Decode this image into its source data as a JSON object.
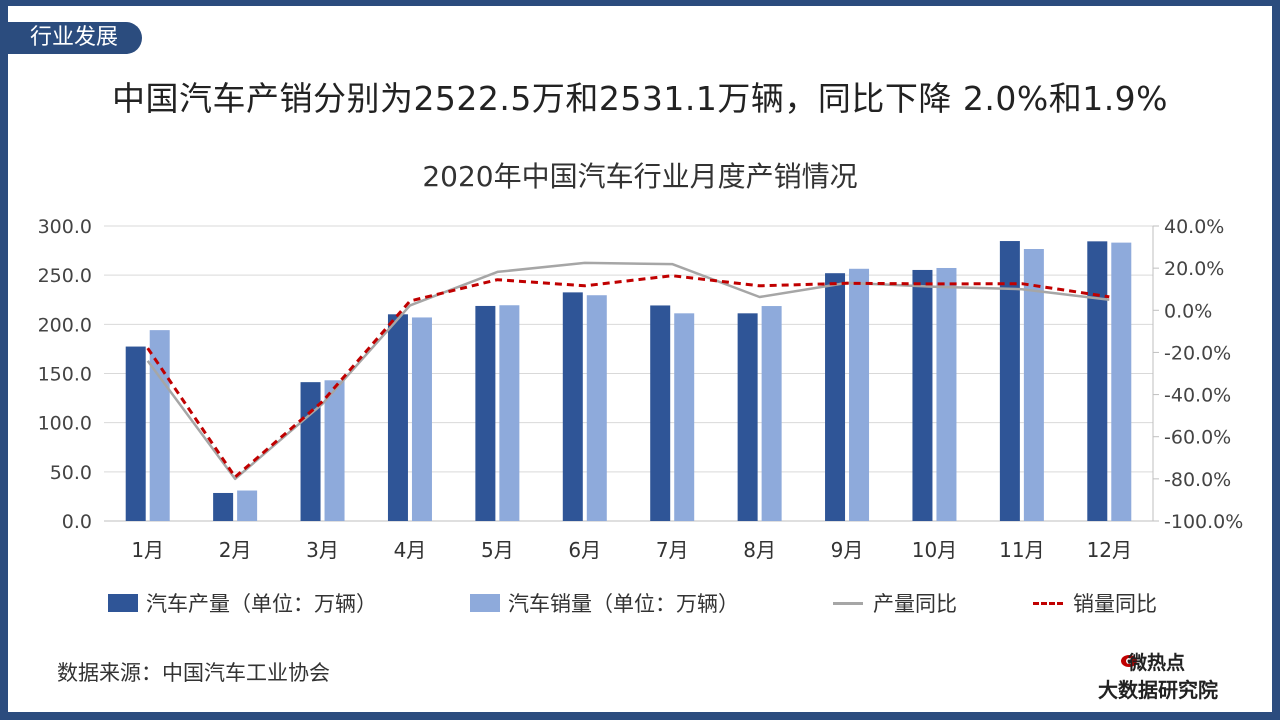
{
  "tag": "行业发展",
  "headline": "中国汽车产销分别为2522.5万和2531.1万辆，同比下降 2.0%和1.9%",
  "source": "数据来源：中国汽车工业协会",
  "logo": {
    "line1": "微热点",
    "line2": "大数据研究院"
  },
  "colors": {
    "frame": "#2b4c7e",
    "production": "#2f5597",
    "sales": "#8eaadb",
    "production_yoy": "#a6a6a6",
    "sales_yoy": "#c00000"
  },
  "chart_data": {
    "type": "bar",
    "title": "2020年中国汽车行业月度产销情况",
    "categories": [
      "1月",
      "2月",
      "3月",
      "4月",
      "5月",
      "6月",
      "7月",
      "8月",
      "9月",
      "10月",
      "11月",
      "12月"
    ],
    "series": [
      {
        "name": "汽车产量（单位：万辆）",
        "type": "bar",
        "axis": "left",
        "values": [
          177.4,
          28.5,
          141.2,
          210.2,
          218.7,
          232.5,
          219.2,
          211.2,
          252.0,
          255.3,
          284.7,
          284.4
        ]
      },
      {
        "name": "汽车销量（单位：万辆）",
        "type": "bar",
        "axis": "left",
        "values": [
          194.1,
          31.0,
          143.1,
          207.0,
          219.4,
          229.6,
          211.2,
          218.6,
          256.5,
          257.3,
          276.6,
          283.1
        ]
      },
      {
        "name": "产量同比",
        "type": "line",
        "axis": "right",
        "values": [
          -24.0,
          -80.0,
          -44.4,
          2.3,
          18.2,
          22.5,
          21.9,
          6.3,
          13.0,
          11.2,
          10.0,
          5.0
        ]
      },
      {
        "name": "销量同比",
        "type": "line",
        "axis": "right",
        "values": [
          -18.0,
          -79.1,
          -43.3,
          4.4,
          14.5,
          11.6,
          16.4,
          11.6,
          12.8,
          12.5,
          12.6,
          6.4
        ]
      }
    ],
    "ylim_left": [
      0,
      300
    ],
    "yticks_left": [
      "0.0",
      "50.0",
      "100.0",
      "150.0",
      "200.0",
      "250.0",
      "300.0"
    ],
    "ylim_right": [
      -100,
      40
    ],
    "yticks_right": [
      "-100.0%",
      "-80.0%",
      "-60.0%",
      "-40.0%",
      "-20.0%",
      "0.0%",
      "20.0%",
      "40.0%"
    ],
    "grid": true,
    "legend_position": "bottom"
  }
}
